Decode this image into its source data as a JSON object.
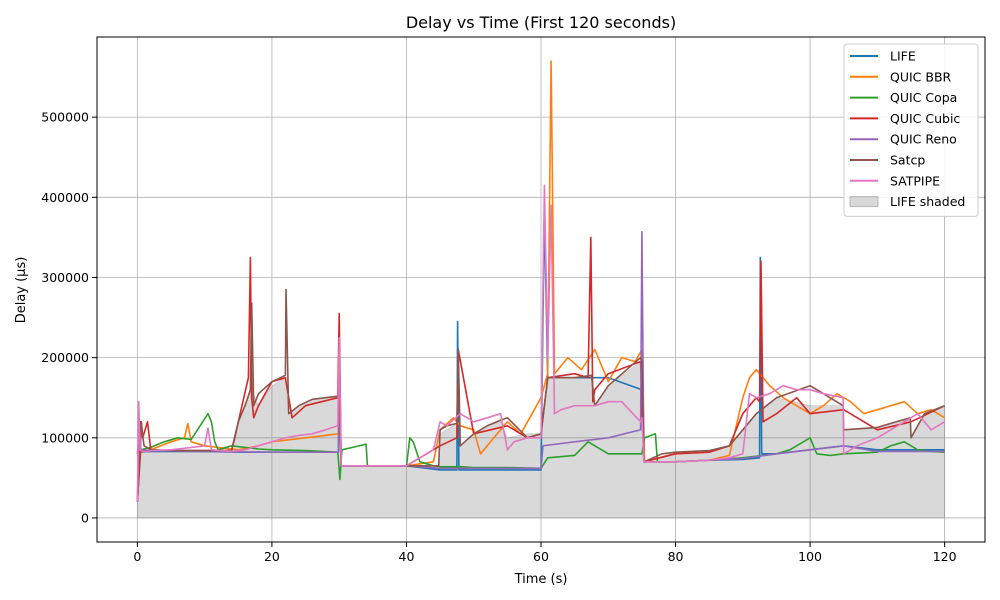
{
  "chart_data": {
    "type": "line",
    "title": "Delay vs Time (First 120 seconds)",
    "xlabel": "Time (s)",
    "ylabel": "Delay (µs)",
    "xlim": [
      -6,
      126
    ],
    "ylim": [
      -30000,
      600000
    ],
    "xticks": [
      0,
      20,
      40,
      60,
      80,
      100,
      120
    ],
    "yticks": [
      0,
      100000,
      200000,
      300000,
      400000,
      500000
    ],
    "grid": true,
    "legend_position": "top-right",
    "series": [
      {
        "name": "LIFE",
        "color": "#1f77b4",
        "x": [
          0,
          0.3,
          0.6,
          2,
          10,
          15,
          20,
          25,
          29.9,
          30,
          30.3,
          35,
          40,
          45,
          47.5,
          47.6,
          47.8,
          50,
          54,
          56,
          60,
          60.5,
          61,
          62,
          65,
          70,
          75,
          75.3,
          80,
          85,
          90,
          92.5,
          92.6,
          92.8,
          95,
          100,
          105,
          110,
          115,
          120
        ],
        "y": [
          20000,
          85000,
          82000,
          83000,
          83000,
          82000,
          82000,
          82000,
          82000,
          200000,
          65000,
          65000,
          65000,
          60000,
          60000,
          245000,
          60000,
          60000,
          60000,
          60000,
          60000,
          385000,
          175000,
          175000,
          175000,
          175000,
          160000,
          70000,
          70000,
          72000,
          73000,
          75000,
          325000,
          80000,
          80000,
          85000,
          90000,
          85000,
          85000,
          85000
        ]
      },
      {
        "name": "QUIC BBR",
        "color": "#ff7f0e",
        "x": [
          0,
          0.4,
          2,
          5,
          7,
          7.5,
          8,
          10,
          15,
          18,
          20,
          25,
          29.9,
          30,
          30.3,
          35,
          40,
          44,
          45,
          47,
          48,
          50,
          51,
          53,
          55,
          57,
          60,
          61,
          61.5,
          62,
          64,
          66,
          68,
          70,
          72,
          74,
          75,
          75.4,
          80,
          85,
          88,
          90,
          91,
          92,
          94,
          96,
          98,
          100,
          102,
          104,
          106,
          108,
          110,
          112,
          114,
          116,
          118,
          120
        ],
        "y": [
          20000,
          82000,
          85000,
          95000,
          100000,
          118000,
          95000,
          90000,
          85000,
          90000,
          95000,
          100000,
          105000,
          210000,
          65000,
          65000,
          65000,
          70000,
          110000,
          125000,
          115000,
          110000,
          80000,
          100000,
          120000,
          105000,
          150000,
          180000,
          570000,
          180000,
          200000,
          185000,
          210000,
          170000,
          200000,
          195000,
          210000,
          70000,
          70000,
          72000,
          78000,
          150000,
          175000,
          185000,
          165000,
          150000,
          140000,
          130000,
          140000,
          155000,
          145000,
          130000,
          135000,
          140000,
          145000,
          130000,
          135000,
          125000
        ]
      },
      {
        "name": "QUIC Copa",
        "color": "#2ca02c",
        "x": [
          0,
          0.5,
          2,
          4,
          6,
          8,
          10.5,
          11,
          11.5,
          12,
          14,
          16,
          18,
          20,
          25,
          29.8,
          30.1,
          30.4,
          32,
          34,
          34.2,
          40,
          40.5,
          41,
          42,
          44,
          45,
          48,
          50,
          55,
          60,
          61,
          65,
          67,
          70,
          75,
          75.4,
          77,
          77.3,
          80,
          85,
          90,
          95,
          97,
          99,
          100,
          101,
          103,
          105,
          110,
          112,
          114,
          116,
          118,
          120
        ],
        "y": [
          20000,
          85000,
          88000,
          95000,
          100000,
          98000,
          130000,
          120000,
          95000,
          85000,
          90000,
          88000,
          86000,
          85000,
          84000,
          82000,
          48000,
          85000,
          88000,
          92000,
          65000,
          65000,
          100000,
          95000,
          70000,
          65000,
          64000,
          64000,
          63000,
          63000,
          62000,
          75000,
          78000,
          95000,
          80000,
          80000,
          100000,
          105000,
          70000,
          70000,
          72000,
          75000,
          80000,
          85000,
          95000,
          100000,
          80000,
          78000,
          80000,
          82000,
          90000,
          95000,
          85000,
          83000,
          82000
        ]
      },
      {
        "name": "QUIC Cubic",
        "color": "#d62728",
        "x": [
          0,
          0.4,
          0.6,
          0.8,
          1.5,
          2,
          5,
          10,
          14,
          15,
          16.5,
          16.8,
          17,
          17.3,
          18,
          20,
          22,
          23,
          25,
          29.8,
          30,
          30.3,
          35,
          40,
          45,
          47.5,
          47.7,
          50,
          55,
          58,
          60,
          61,
          65,
          67,
          67.4,
          67.7,
          68,
          70,
          74.8,
          75.3,
          80,
          85,
          88,
          90,
          92,
          92.5,
          92.7,
          93,
          95,
          98,
          100,
          105,
          110,
          115,
          120
        ],
        "y": [
          20000,
          80000,
          120000,
          100000,
          120000,
          85000,
          84000,
          84000,
          84000,
          120000,
          175000,
          325000,
          150000,
          125000,
          140000,
          170000,
          175000,
          125000,
          140000,
          150000,
          255000,
          65000,
          65000,
          65000,
          90000,
          100000,
          210000,
          105000,
          115000,
          100000,
          105000,
          175000,
          180000,
          175000,
          350000,
          145000,
          160000,
          180000,
          195000,
          70000,
          80000,
          82000,
          90000,
          130000,
          150000,
          145000,
          320000,
          120000,
          130000,
          150000,
          130000,
          135000,
          110000,
          120000,
          140000
        ]
      },
      {
        "name": "QUIC Reno",
        "color": "#9467bd",
        "x": [
          0,
          0.3,
          0.5,
          2,
          10,
          20,
          29.9,
          30,
          30.3,
          35,
          40,
          45,
          50,
          55,
          60,
          60.3,
          65,
          70,
          74.8,
          75,
          75.3,
          80,
          85,
          90,
          95,
          100,
          105,
          110,
          115,
          120
        ],
        "y": [
          20000,
          120000,
          85000,
          84000,
          83000,
          82000,
          82000,
          195000,
          65000,
          65000,
          65000,
          62000,
          62000,
          62000,
          62000,
          90000,
          95000,
          100000,
          110000,
          357000,
          70000,
          70000,
          72000,
          74000,
          80000,
          85000,
          90000,
          83000,
          83000,
          83000
        ]
      },
      {
        "name": "Satcp",
        "color": "#8c564b",
        "x": [
          0,
          0.5,
          1,
          2,
          5,
          10,
          14,
          14.5,
          15,
          16,
          16.8,
          17,
          17.3,
          18,
          20,
          22,
          22.1,
          22.5,
          24,
          26,
          28,
          29.9,
          30,
          30.3,
          35,
          40,
          44.8,
          45,
          46,
          47.5,
          47.7,
          48,
          50,
          52,
          54,
          55,
          58,
          60,
          60.5,
          61,
          65,
          67.5,
          68,
          70,
          74.8,
          75,
          75.3,
          78,
          80,
          85,
          88,
          90,
          92,
          95,
          100,
          102,
          104.9,
          105,
          110,
          112,
          114.9,
          115,
          117,
          120
        ],
        "y": [
          80000,
          120000,
          90000,
          85000,
          84000,
          84000,
          84000,
          100000,
          120000,
          140000,
          160000,
          268000,
          140000,
          155000,
          170000,
          178000,
          285000,
          130000,
          140000,
          148000,
          150000,
          152000,
          152000,
          65000,
          65000,
          65000,
          65000,
          110000,
          115000,
          118000,
          210000,
          90000,
          105000,
          115000,
          122000,
          125000,
          100000,
          105000,
          140000,
          175000,
          175000,
          178000,
          140000,
          165000,
          200000,
          195000,
          70000,
          80000,
          82000,
          84000,
          90000,
          110000,
          130000,
          150000,
          165000,
          155000,
          140000,
          110000,
          113000,
          118000,
          125000,
          100000,
          130000,
          140000
        ]
      },
      {
        "name": "SATPIPE",
        "color": "#e377c2",
        "x": [
          0,
          0.2,
          0.4,
          1,
          2,
          5,
          8,
          10,
          10.5,
          11,
          14,
          16,
          18,
          20,
          22,
          24,
          26,
          28,
          29.8,
          30,
          30.3,
          35,
          40,
          42,
          44,
          45,
          46,
          48,
          50,
          52,
          54,
          55,
          56,
          58,
          60,
          60.5,
          61,
          61.5,
          62,
          63,
          65,
          68,
          70,
          72,
          74.8,
          75,
          75.3,
          80,
          85,
          88,
          90,
          91,
          92,
          94,
          96,
          98,
          100,
          102,
          104.9,
          105,
          107,
          110,
          112,
          114,
          116,
          118,
          120
        ],
        "y": [
          20000,
          145000,
          85000,
          82000,
          84000,
          85000,
          88000,
          90000,
          112000,
          85000,
          83000,
          85000,
          90000,
          95000,
          100000,
          103000,
          105000,
          110000,
          115000,
          225000,
          65000,
          65000,
          65000,
          75000,
          85000,
          120000,
          115000,
          130000,
          120000,
          125000,
          130000,
          85000,
          95000,
          100000,
          100000,
          415000,
          200000,
          390000,
          130000,
          135000,
          140000,
          140000,
          145000,
          145000,
          120000,
          125000,
          70000,
          70000,
          72000,
          75000,
          80000,
          155000,
          150000,
          155000,
          165000,
          160000,
          160000,
          155000,
          150000,
          80000,
          90000,
          100000,
          110000,
          120000,
          130000,
          110000,
          120000
        ]
      },
      {
        "name": "LIFE shaded",
        "color": "#808080",
        "fill_opacity": 0.3,
        "x": [
          0,
          0.3,
          1,
          10,
          14,
          14.5,
          15,
          16,
          17,
          18,
          20,
          22,
          22.5,
          24,
          26,
          28,
          29.9,
          30.3,
          40,
          44.8,
          45,
          47.5,
          48,
          50,
          52,
          54,
          55,
          58,
          60,
          60.5,
          61,
          65,
          67.5,
          68,
          70,
          74.8,
          75.3,
          80,
          85,
          88,
          90,
          92,
          95,
          100,
          104.9,
          105,
          110,
          112,
          114.9,
          115,
          117,
          120
        ],
        "y": [
          20000,
          82000,
          82000,
          82000,
          82000,
          100000,
          120000,
          140000,
          160000,
          140000,
          165000,
          175000,
          130000,
          140000,
          148000,
          150000,
          152000,
          65000,
          65000,
          65000,
          105000,
          118000,
          90000,
          105000,
          115000,
          120000,
          100000,
          105000,
          105000,
          140000,
          175000,
          175000,
          178000,
          140000,
          165000,
          195000,
          70000,
          82000,
          84000,
          90000,
          110000,
          130000,
          150000,
          140000,
          140000,
          110000,
          113000,
          118000,
          125000,
          100000,
          130000,
          140000
        ]
      }
    ],
    "legend": [
      "LIFE",
      "QUIC BBR",
      "QUIC Copa",
      "QUIC Cubic",
      "QUIC Reno",
      "Satcp",
      "SATPIPE",
      "LIFE shaded"
    ]
  }
}
